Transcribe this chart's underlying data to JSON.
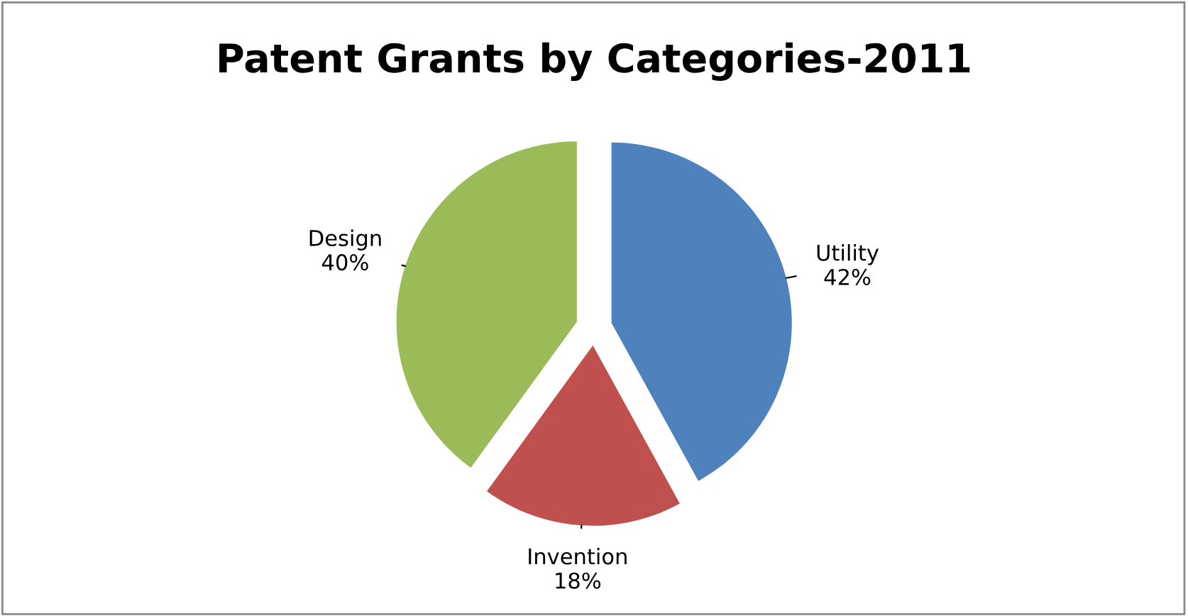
{
  "chart_data": {
    "type": "pie",
    "title": "Patent Grants by Categories-2011",
    "categories": [
      "Utility",
      "Invention",
      "Design"
    ],
    "values": [
      42,
      18,
      40
    ],
    "colors": [
      "#4f81bd",
      "#c0504d",
      "#9bbb59"
    ],
    "value_labels": [
      "42%",
      "18%",
      "40%"
    ]
  }
}
